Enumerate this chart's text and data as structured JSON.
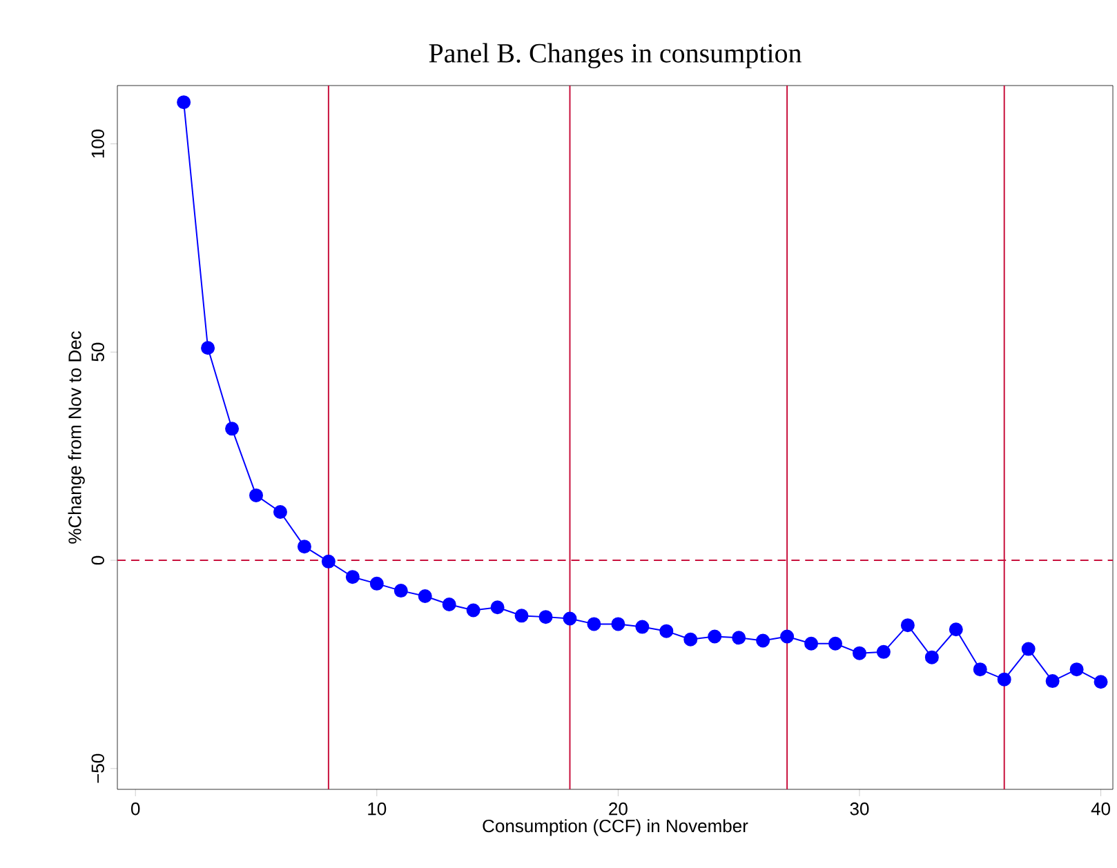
{
  "chart_data": {
    "type": "line",
    "title": "Panel B. Changes in consumption",
    "xlabel": "Consumption (CCF) in November",
    "ylabel": "%Change from Nov to Dec",
    "x": [
      2,
      3,
      4,
      5,
      6,
      7,
      8,
      9,
      10,
      11,
      12,
      13,
      14,
      15,
      16,
      17,
      18,
      19,
      20,
      21,
      22,
      23,
      24,
      25,
      26,
      27,
      28,
      29,
      30,
      31,
      32,
      33,
      34,
      35,
      36,
      37,
      38,
      39,
      40
    ],
    "series": [
      {
        "color": "#0000ff",
        "values": [
          110,
          51,
          31.6,
          15.6,
          11.6,
          3.3,
          -0.3,
          -4,
          -5.6,
          -7.3,
          -8.6,
          -10.6,
          -12,
          -11.3,
          -13.3,
          -13.6,
          -14,
          -15.3,
          -15.3,
          -16,
          -17,
          -19,
          -18.3,
          -18.6,
          -19.3,
          -18.3,
          -20,
          -20,
          -22.3,
          -22,
          -15.6,
          -23.3,
          -16.6,
          -26.2,
          -28.6,
          -21.3,
          -29,
          -26.2,
          -29.2
        ]
      }
    ],
    "marker": "circle",
    "line_style": "solid",
    "grid": false,
    "xlim": [
      -0.75,
      40.5
    ],
    "ylim": [
      -55,
      114
    ],
    "xticks": [
      0,
      10,
      20,
      30,
      40
    ],
    "yticks": [
      {
        "value": -50,
        "label": "−50"
      },
      0,
      50,
      100
    ],
    "ref_lines": [
      {
        "axis": "x",
        "value": 8,
        "color": "#c8103c",
        "line_style": "solid"
      },
      {
        "axis": "x",
        "value": 18,
        "color": "#c8103c",
        "line_style": "solid"
      },
      {
        "axis": "x",
        "value": 27,
        "color": "#c8103c",
        "line_style": "solid"
      },
      {
        "axis": "x",
        "value": 36,
        "color": "#c8103c",
        "line_style": "solid"
      },
      {
        "axis": "y",
        "value": 0,
        "color": "#c8103c",
        "line_style": "dashed"
      }
    ]
  }
}
